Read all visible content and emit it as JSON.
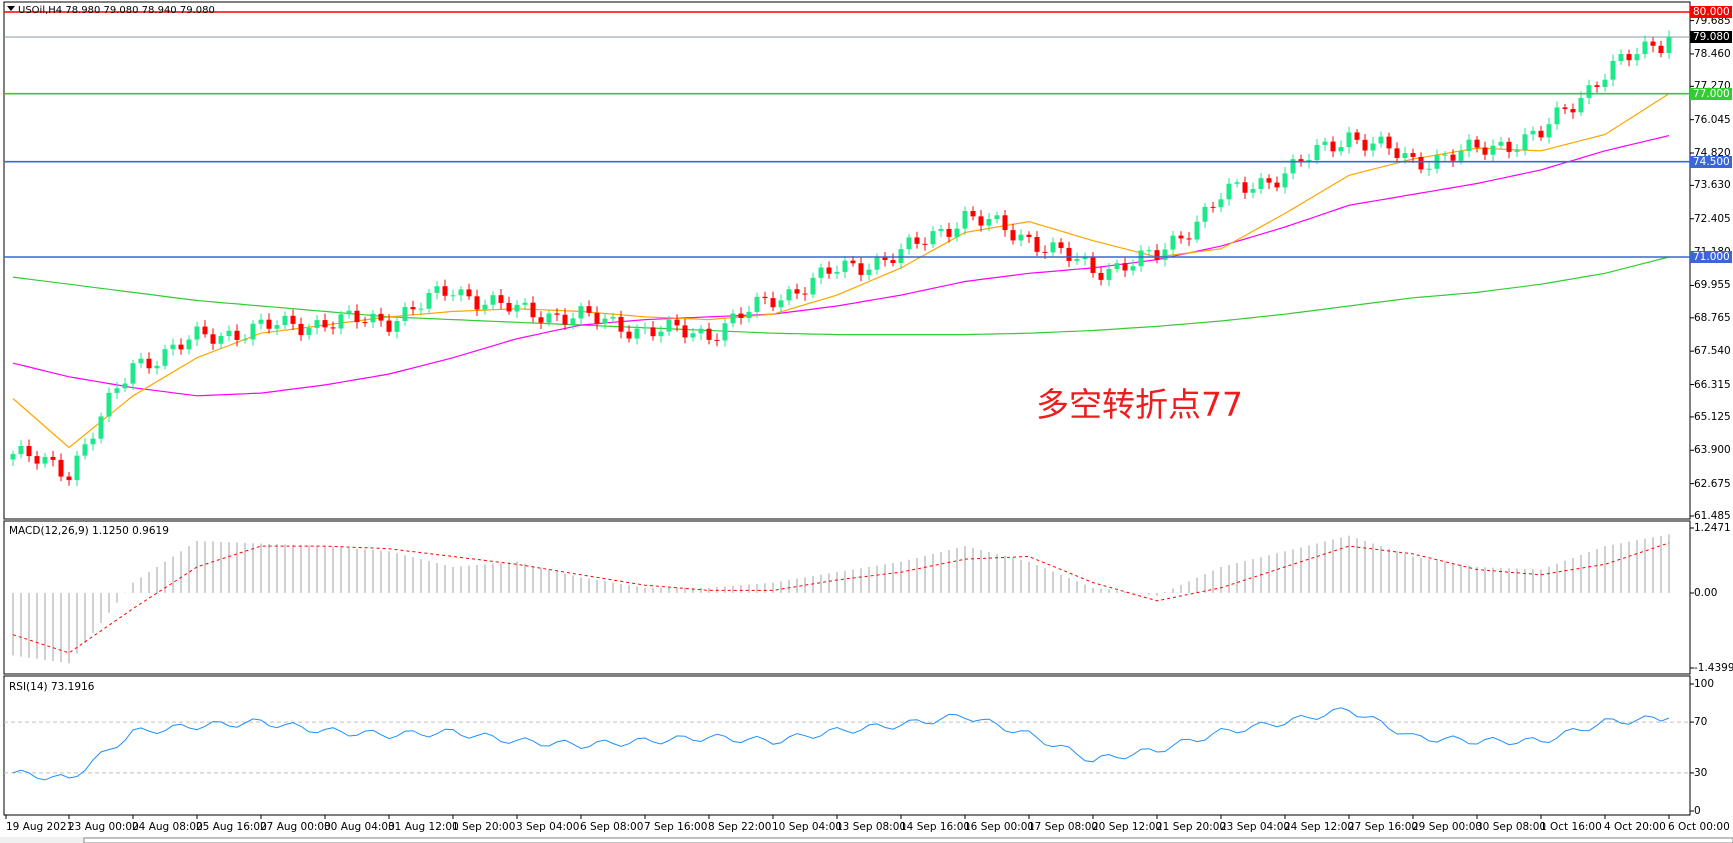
{
  "title": "USOil,H4  78.980 79.080 78.940 79.080",
  "macd_title": "MACD(12,26,9) 1.1250 0.9619",
  "rsi_title": "RSI(14) 73.1916",
  "annotation": "多空转折点77",
  "colors": {
    "bull": "#1ee88a",
    "bear": "#ff0000",
    "ma_fast": "#ffa500",
    "ma_mid": "#ff00ff",
    "ma_slow": "#32cd32",
    "line_80": "#ff0000",
    "line_77": "#33cc33",
    "line_blue": "#3a66d6",
    "macd_hist": "#c0c0c0",
    "macd_signal": "#ff0000",
    "rsi": "#1e90ff"
  },
  "chart_data": [
    {
      "type": "candlestick",
      "symbol": "USOil",
      "timeframe": "H4",
      "ylim": [
        61.485,
        80.0
      ],
      "price_ticks": [
        "79.685",
        "78.460",
        "77.270",
        "76.045",
        "74.820",
        "73.630",
        "72.405",
        "71.180",
        "69.955",
        "68.765",
        "67.540",
        "66.315",
        "65.125",
        "63.900",
        "62.675",
        "61.485"
      ],
      "x_labels": [
        "19 Aug 2021",
        "23 Aug 00:00",
        "24 Aug 08:00",
        "25 Aug 16:00",
        "27 Aug 00:00",
        "30 Aug 04:00",
        "31 Aug 12:00",
        "1 Sep 20:00",
        "3 Sep 04:00",
        "6 Sep 08:00",
        "7 Sep 16:00",
        "8 Sep 22:00",
        "10 Sep 04:00",
        "13 Sep 08:00",
        "14 Sep 16:00",
        "16 Sep 00:00",
        "17 Sep 08:00",
        "20 Sep 12:00",
        "21 Sep 20:00",
        "23 Sep 04:00",
        "24 Sep 12:00",
        "27 Sep 16:00",
        "29 Sep 00:00",
        "30 Sep 08:00",
        "1 Oct 16:00",
        "4 Oct 20:00",
        "6 Oct 00:00"
      ],
      "close_at_labels": [
        63.76,
        63.15,
        67.0,
        68.0,
        68.4,
        68.6,
        68.7,
        69.8,
        69.0,
        68.8,
        68.3,
        68.2,
        69.45,
        70.5,
        71.1,
        72.5,
        71.7,
        70.5,
        71.0,
        73.2,
        74.1,
        75.5,
        74.5,
        74.9,
        75.5,
        77.8,
        79.08
      ],
      "ma_fast_at_labels": [
        65.8,
        64.0,
        65.9,
        67.3,
        68.2,
        68.5,
        68.8,
        69.0,
        69.1,
        69.0,
        68.8,
        68.7,
        68.9,
        69.6,
        70.6,
        71.9,
        72.3,
        71.6,
        71.0,
        71.3,
        72.6,
        74.0,
        74.6,
        75.0,
        74.9,
        75.5,
        77.0
      ],
      "ma_mid_at_labels": [
        67.1,
        66.6,
        66.2,
        65.9,
        66.0,
        66.3,
        66.7,
        67.3,
        68.0,
        68.5,
        68.7,
        68.8,
        68.9,
        69.2,
        69.6,
        70.1,
        70.4,
        70.6,
        70.9,
        71.4,
        72.1,
        72.9,
        73.3,
        73.7,
        74.2,
        74.9,
        75.46
      ],
      "ma_slow_at_labels": [
        70.26,
        70.0,
        69.7,
        69.4,
        69.2,
        69.0,
        68.8,
        68.7,
        68.6,
        68.5,
        68.4,
        68.3,
        68.2,
        68.15,
        68.15,
        68.15,
        68.2,
        68.3,
        68.45,
        68.65,
        68.9,
        69.2,
        69.5,
        69.7,
        70.0,
        70.4,
        71.0
      ],
      "current_price": "79.080",
      "horizontal_lines": [
        {
          "price": 80.0,
          "label": "80.000",
          "color": "#ff0000"
        },
        {
          "price": 77.0,
          "label": "77.000",
          "color": "#33cc33"
        },
        {
          "price": 74.5,
          "label": "74.500",
          "color": "#3a66d6"
        },
        {
          "price": 71.0,
          "label": "71.000",
          "color": "#3a66d6"
        }
      ]
    },
    {
      "type": "bar+line",
      "name": "MACD(12,26,9)",
      "ylim": [
        -1.4399,
        1.2471
      ],
      "y_ticks": [
        "1.2471",
        "0.00",
        "-1.4399"
      ],
      "hist_at_labels": [
        -1.2,
        -1.35,
        0.2,
        1.0,
        0.95,
        0.9,
        0.8,
        0.5,
        0.6,
        0.3,
        0.1,
        0.1,
        0.2,
        0.4,
        0.6,
        0.9,
        0.6,
        0.1,
        -0.05,
        0.5,
        0.8,
        1.1,
        0.7,
        0.5,
        0.45,
        0.9,
        1.125
      ],
      "signal_at_labels": [
        -0.8,
        -1.15,
        -0.3,
        0.5,
        0.9,
        0.9,
        0.85,
        0.7,
        0.55,
        0.35,
        0.15,
        0.05,
        0.05,
        0.25,
        0.4,
        0.65,
        0.7,
        0.2,
        -0.15,
        0.1,
        0.5,
        0.9,
        0.75,
        0.45,
        0.35,
        0.55,
        0.96
      ]
    },
    {
      "type": "line",
      "name": "RSI(14)",
      "ylim": [
        0,
        100
      ],
      "y_ticks": [
        "100",
        "70",
        "30",
        "0"
      ],
      "levels": [
        70,
        30
      ],
      "rsi_at_labels": [
        30,
        25,
        62,
        67,
        70,
        63,
        60,
        62,
        55,
        52,
        55,
        58,
        55,
        63,
        68,
        75,
        60,
        40,
        48,
        62,
        70,
        80,
        58,
        55,
        55,
        70,
        73.19
      ]
    }
  ]
}
